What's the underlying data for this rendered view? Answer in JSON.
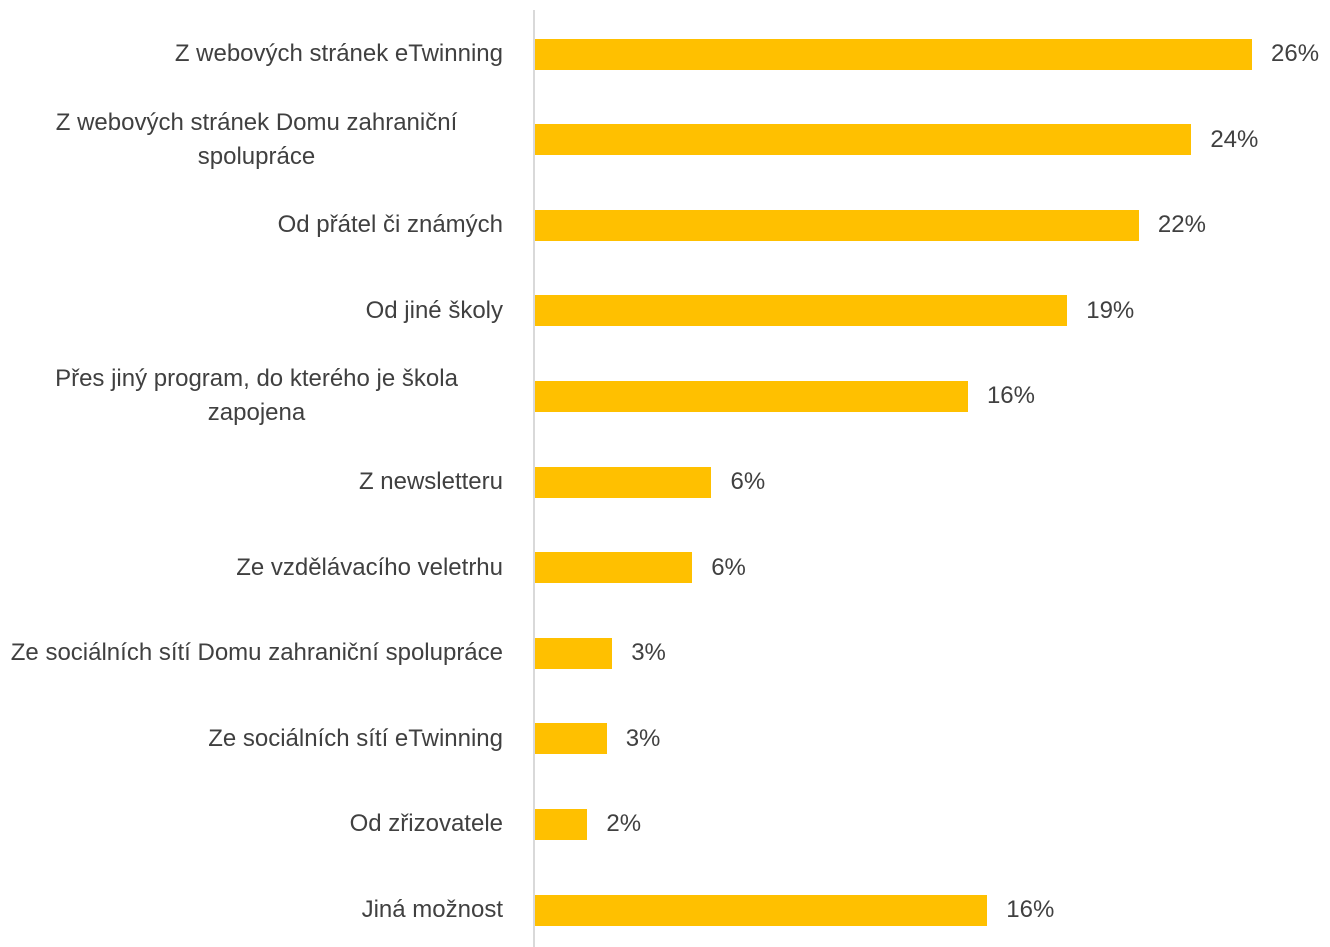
{
  "chart_data": {
    "type": "barh",
    "categories": [
      "Z webových stránek eTwinning",
      "Z webových stránek Domu zahraniční spolupráce",
      "Od přátel či známých",
      "Od jiné školy",
      "Přes jiný program, do kterého je škola zapojena",
      "Z newsletteru",
      "Ze vzdělávacího veletrhu",
      "Ze sociálních sítí Domu zahraniční spolupráce",
      "Ze sociálních sítí eTwinning",
      "Od zřizovatele",
      "Jiná možnost"
    ],
    "values": [
      26,
      23.8,
      21.9,
      19.3,
      15.7,
      6.4,
      5.7,
      2.8,
      2.6,
      1.9,
      16.4
    ],
    "value_labels": [
      "26%",
      "24%",
      "22%",
      "19%",
      "16%",
      "6%",
      "6%",
      "3%",
      "3%",
      "2%",
      "16%"
    ],
    "color": "#ffc000",
    "xlim": [
      0,
      26
    ]
  }
}
